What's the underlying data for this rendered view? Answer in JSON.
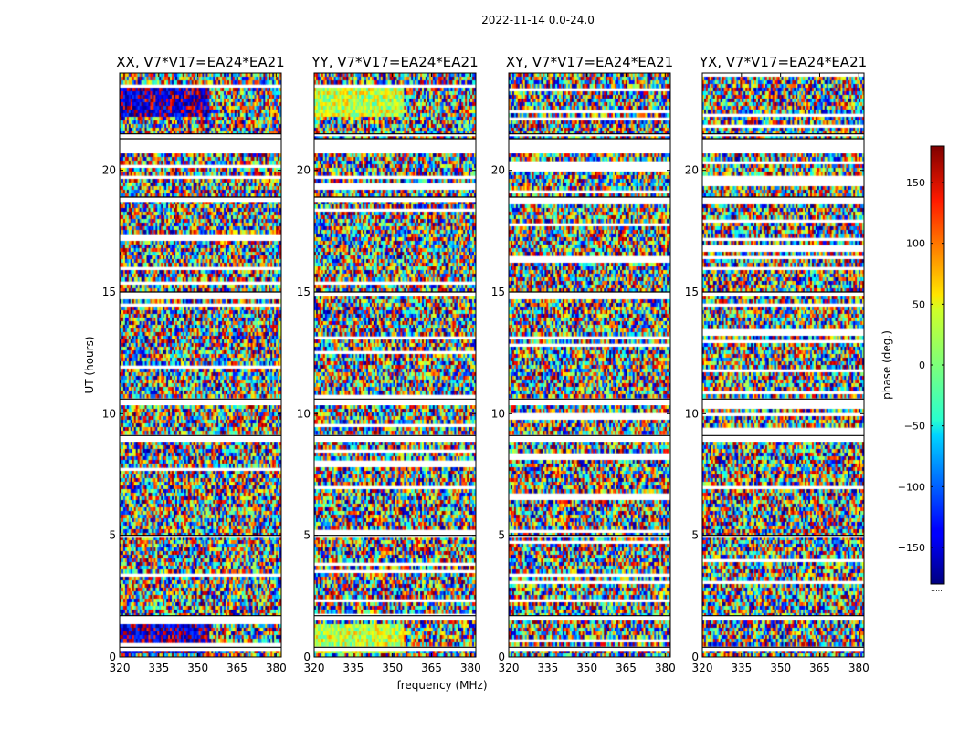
{
  "chart_data": {
    "type": "heatmap",
    "suptitle": "2022-11-14 0.0-24.0",
    "xlabel": "frequency (MHz)",
    "ylabel": "UT (hours)",
    "x_ticks": [
      320,
      335,
      350,
      365,
      380
    ],
    "y_ticks": [
      0,
      5,
      10,
      15,
      20
    ],
    "xlim": [
      320,
      382
    ],
    "ylim": [
      0,
      24
    ],
    "panels": [
      {
        "title": "XX, V7*V17=EA24*EA21",
        "notes": "blue/red dominated blocks near 23 h and 0-1.5 h"
      },
      {
        "title": "YY, V7*V17=EA24*EA21",
        "notes": "yellow/green dominated blocks near 23 h and 0-1.5 h"
      },
      {
        "title": "XY, V7*V17=EA24*EA21",
        "notes": "noise-like phases"
      },
      {
        "title": "YX, V7*V17=EA24*EA21",
        "notes": "noise-like phases"
      }
    ],
    "blank_intervals_hours": [
      [
        21.4,
        21.5
      ],
      [
        20.7,
        21.3
      ],
      [
        18.7,
        18.9
      ],
      [
        14.85,
        15.0
      ],
      [
        10.35,
        10.6
      ],
      [
        8.85,
        9.1
      ],
      [
        4.9,
        5.0
      ],
      [
        1.55,
        1.7
      ],
      [
        0.25,
        0.4
      ]
    ],
    "colorbar": {
      "label": "phase (deg.)",
      "range": [
        -180,
        180
      ],
      "ticks": [
        150,
        100,
        50,
        0,
        -50,
        -100,
        -150
      ],
      "tick_labels": [
        "150",
        "100",
        "50",
        "0",
        "−50",
        "−100",
        "−150"
      ],
      "colormap": "jet"
    }
  }
}
